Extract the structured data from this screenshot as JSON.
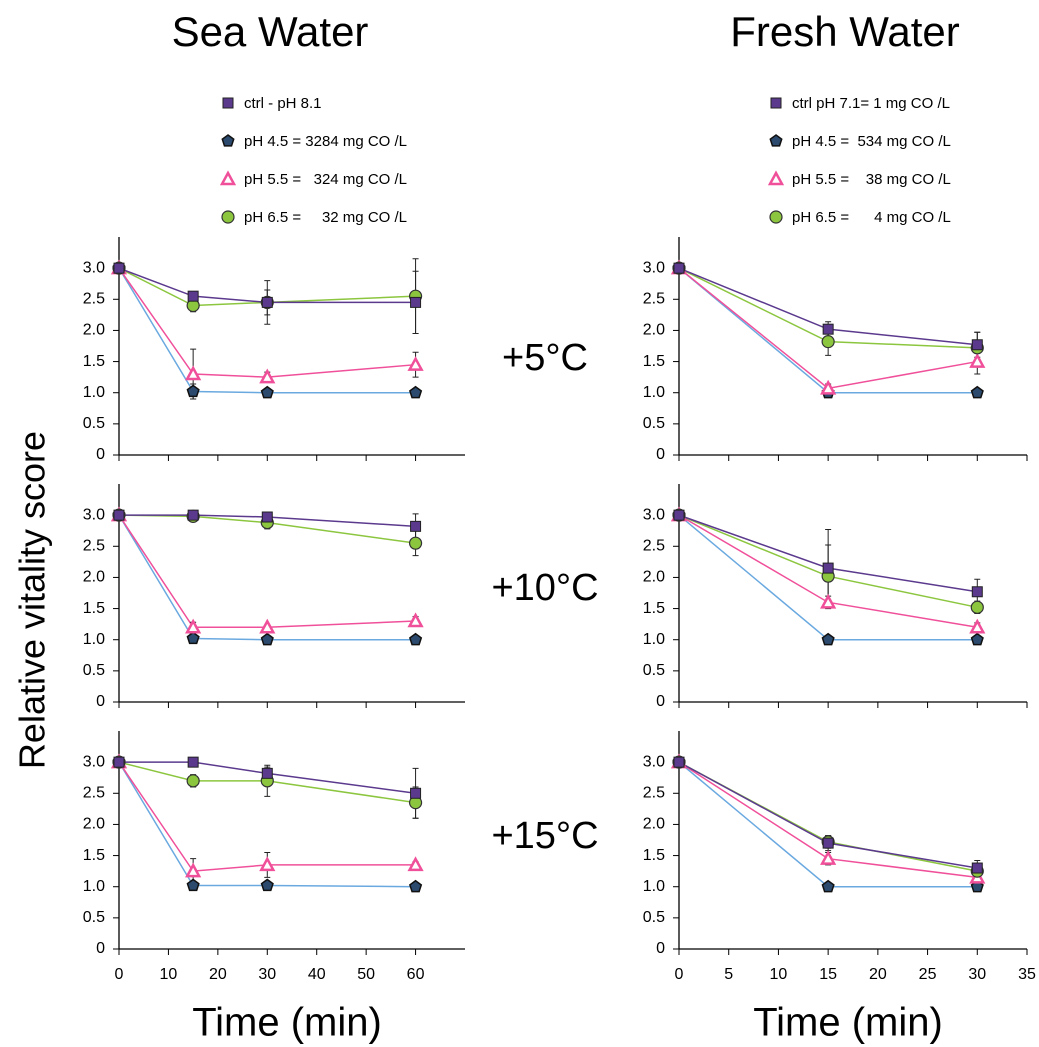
{
  "ylabel": "Relative vitality score",
  "panel_labels": [
    "+5°C",
    "+10°C",
    "+15°C"
  ],
  "chart_data": [
    {
      "type": "line",
      "title": "Sea Water",
      "xlabel": "Time (min)",
      "x": [
        0,
        15,
        30,
        60
      ],
      "xlim": [
        0,
        70
      ],
      "xticks": [
        0,
        10,
        20,
        30,
        40,
        50,
        60
      ],
      "ylim": [
        0,
        3.5
      ],
      "yticks": [
        0,
        0.5,
        {
          "value": 1,
          "label": "1.0"
        },
        1.5,
        {
          "value": 2,
          "label": "2.0"
        },
        2.5,
        {
          "value": 3,
          "label": "3.0"
        }
      ],
      "series": [
        {
          "name": "ctrl - pH 8.1",
          "color": "#5b3a8e",
          "marker": "square",
          "panels": [
            {
              "values": [
                3,
                2.55,
                2.45,
                2.45
              ],
              "errors": [
                0,
                0.05,
                0.2,
                0.5
              ]
            },
            {
              "values": [
                3,
                3,
                2.97,
                2.82
              ],
              "errors": [
                0,
                0,
                0.05,
                0.2
              ]
            },
            {
              "values": [
                3,
                3,
                2.82,
                2.5
              ],
              "errors": [
                0,
                0.05,
                0.1,
                0.4
              ]
            }
          ]
        },
        {
          "name": "pH 4.5 = 3284 mg CO /L",
          "color": "#6aa9e0",
          "marker": "pentagon",
          "panels": [
            {
              "values": [
                3,
                1.02,
                1,
                1
              ],
              "errors": [
                0,
                0.12,
                0,
                0
              ]
            },
            {
              "values": [
                3,
                1.02,
                1,
                1
              ],
              "errors": [
                0,
                0,
                0,
                0
              ]
            },
            {
              "values": [
                3,
                1.02,
                1.02,
                1
              ],
              "errors": [
                0,
                0,
                0,
                0
              ]
            }
          ]
        },
        {
          "name": "pH 5.5 =   324 mg CO /L",
          "color": "#f0509a",
          "marker": "triangle",
          "panels": [
            {
              "values": [
                3,
                1.3,
                1.25,
                1.45
              ],
              "errors": [
                0,
                0.4,
                0.08,
                0.2
              ]
            },
            {
              "values": [
                3,
                1.2,
                1.2,
                1.3
              ],
              "errors": [
                0,
                0.08,
                0.03,
                0.07
              ]
            },
            {
              "values": [
                3,
                1.25,
                1.35,
                1.35
              ],
              "errors": [
                0,
                0.2,
                0.2,
                0.05
              ]
            }
          ]
        },
        {
          "name": "pH 6.5 =     32 mg CO /L",
          "color": "#8cc63f",
          "marker": "circle",
          "panels": [
            {
              "values": [
                3,
                2.4,
                2.45,
                2.55
              ],
              "errors": [
                0,
                0.1,
                0.35,
                0.6
              ]
            },
            {
              "values": [
                3,
                2.98,
                2.88,
                2.55
              ],
              "errors": [
                0,
                0,
                0.1,
                0.2
              ]
            },
            {
              "values": [
                3,
                2.7,
                2.7,
                2.35
              ],
              "errors": [
                0,
                0.1,
                0.25,
                0.25
              ]
            }
          ]
        }
      ]
    },
    {
      "type": "line",
      "title": "Fresh Water",
      "xlabel": "Time (min)",
      "x": [
        0,
        15,
        30
      ],
      "xlim": [
        0,
        35
      ],
      "xticks": [
        0,
        5,
        10,
        15,
        20,
        25,
        30,
        35
      ],
      "ylim": [
        0,
        3.5
      ],
      "yticks": [
        0,
        0.5,
        {
          "value": 1,
          "label": "1.0"
        },
        1.5,
        {
          "value": 2,
          "label": "2.0"
        },
        2.5,
        {
          "value": 3,
          "label": "3.0"
        }
      ],
      "series": [
        {
          "name": "ctrl pH 7.1= 1 mg CO /L",
          "color": "#5b3a8e",
          "marker": "square",
          "panels": [
            {
              "values": [
                3,
                2.02,
                1.77
              ],
              "errors": [
                0,
                0.12,
                0.2
              ]
            },
            {
              "values": [
                3,
                2.15,
                1.77
              ],
              "errors": [
                0,
                0.62,
                0.2
              ]
            },
            {
              "values": [
                3,
                1.7,
                1.3
              ],
              "errors": [
                0,
                0.12,
                0.12
              ]
            }
          ]
        },
        {
          "name": "pH 4.5 =  534 mg CO /L",
          "color": "#6aa9e0",
          "marker": "pentagon",
          "panels": [
            {
              "values": [
                3,
                1,
                1
              ],
              "errors": [
                0,
                0,
                0
              ]
            },
            {
              "values": [
                3,
                1,
                1
              ],
              "errors": [
                0,
                0,
                0
              ]
            },
            {
              "values": [
                3,
                1,
                1
              ],
              "errors": [
                0,
                0,
                0
              ]
            }
          ]
        },
        {
          "name": "pH 5.5 =    38 mg CO /L",
          "color": "#f0509a",
          "marker": "triangle",
          "panels": [
            {
              "values": [
                3,
                1.07,
                1.5
              ],
              "errors": [
                0,
                0.07,
                0.2
              ]
            },
            {
              "values": [
                3,
                1.6,
                1.2
              ],
              "errors": [
                0,
                0.1,
                0.07
              ]
            },
            {
              "values": [
                3,
                1.45,
                1.15
              ],
              "errors": [
                0,
                0.1,
                0.05
              ]
            }
          ]
        },
        {
          "name": "pH 6.5 =      4 mg CO /L",
          "color": "#8cc63f",
          "marker": "circle",
          "panels": [
            {
              "values": [
                3,
                1.82,
                1.72
              ],
              "errors": [
                0,
                0.22,
                0.25
              ]
            },
            {
              "values": [
                3,
                2.02,
                1.52
              ],
              "errors": [
                0,
                0.5,
                0.1
              ]
            },
            {
              "values": [
                3,
                1.72,
                1.25
              ],
              "errors": [
                0,
                0.1,
                0.1
              ]
            }
          ]
        }
      ]
    }
  ]
}
